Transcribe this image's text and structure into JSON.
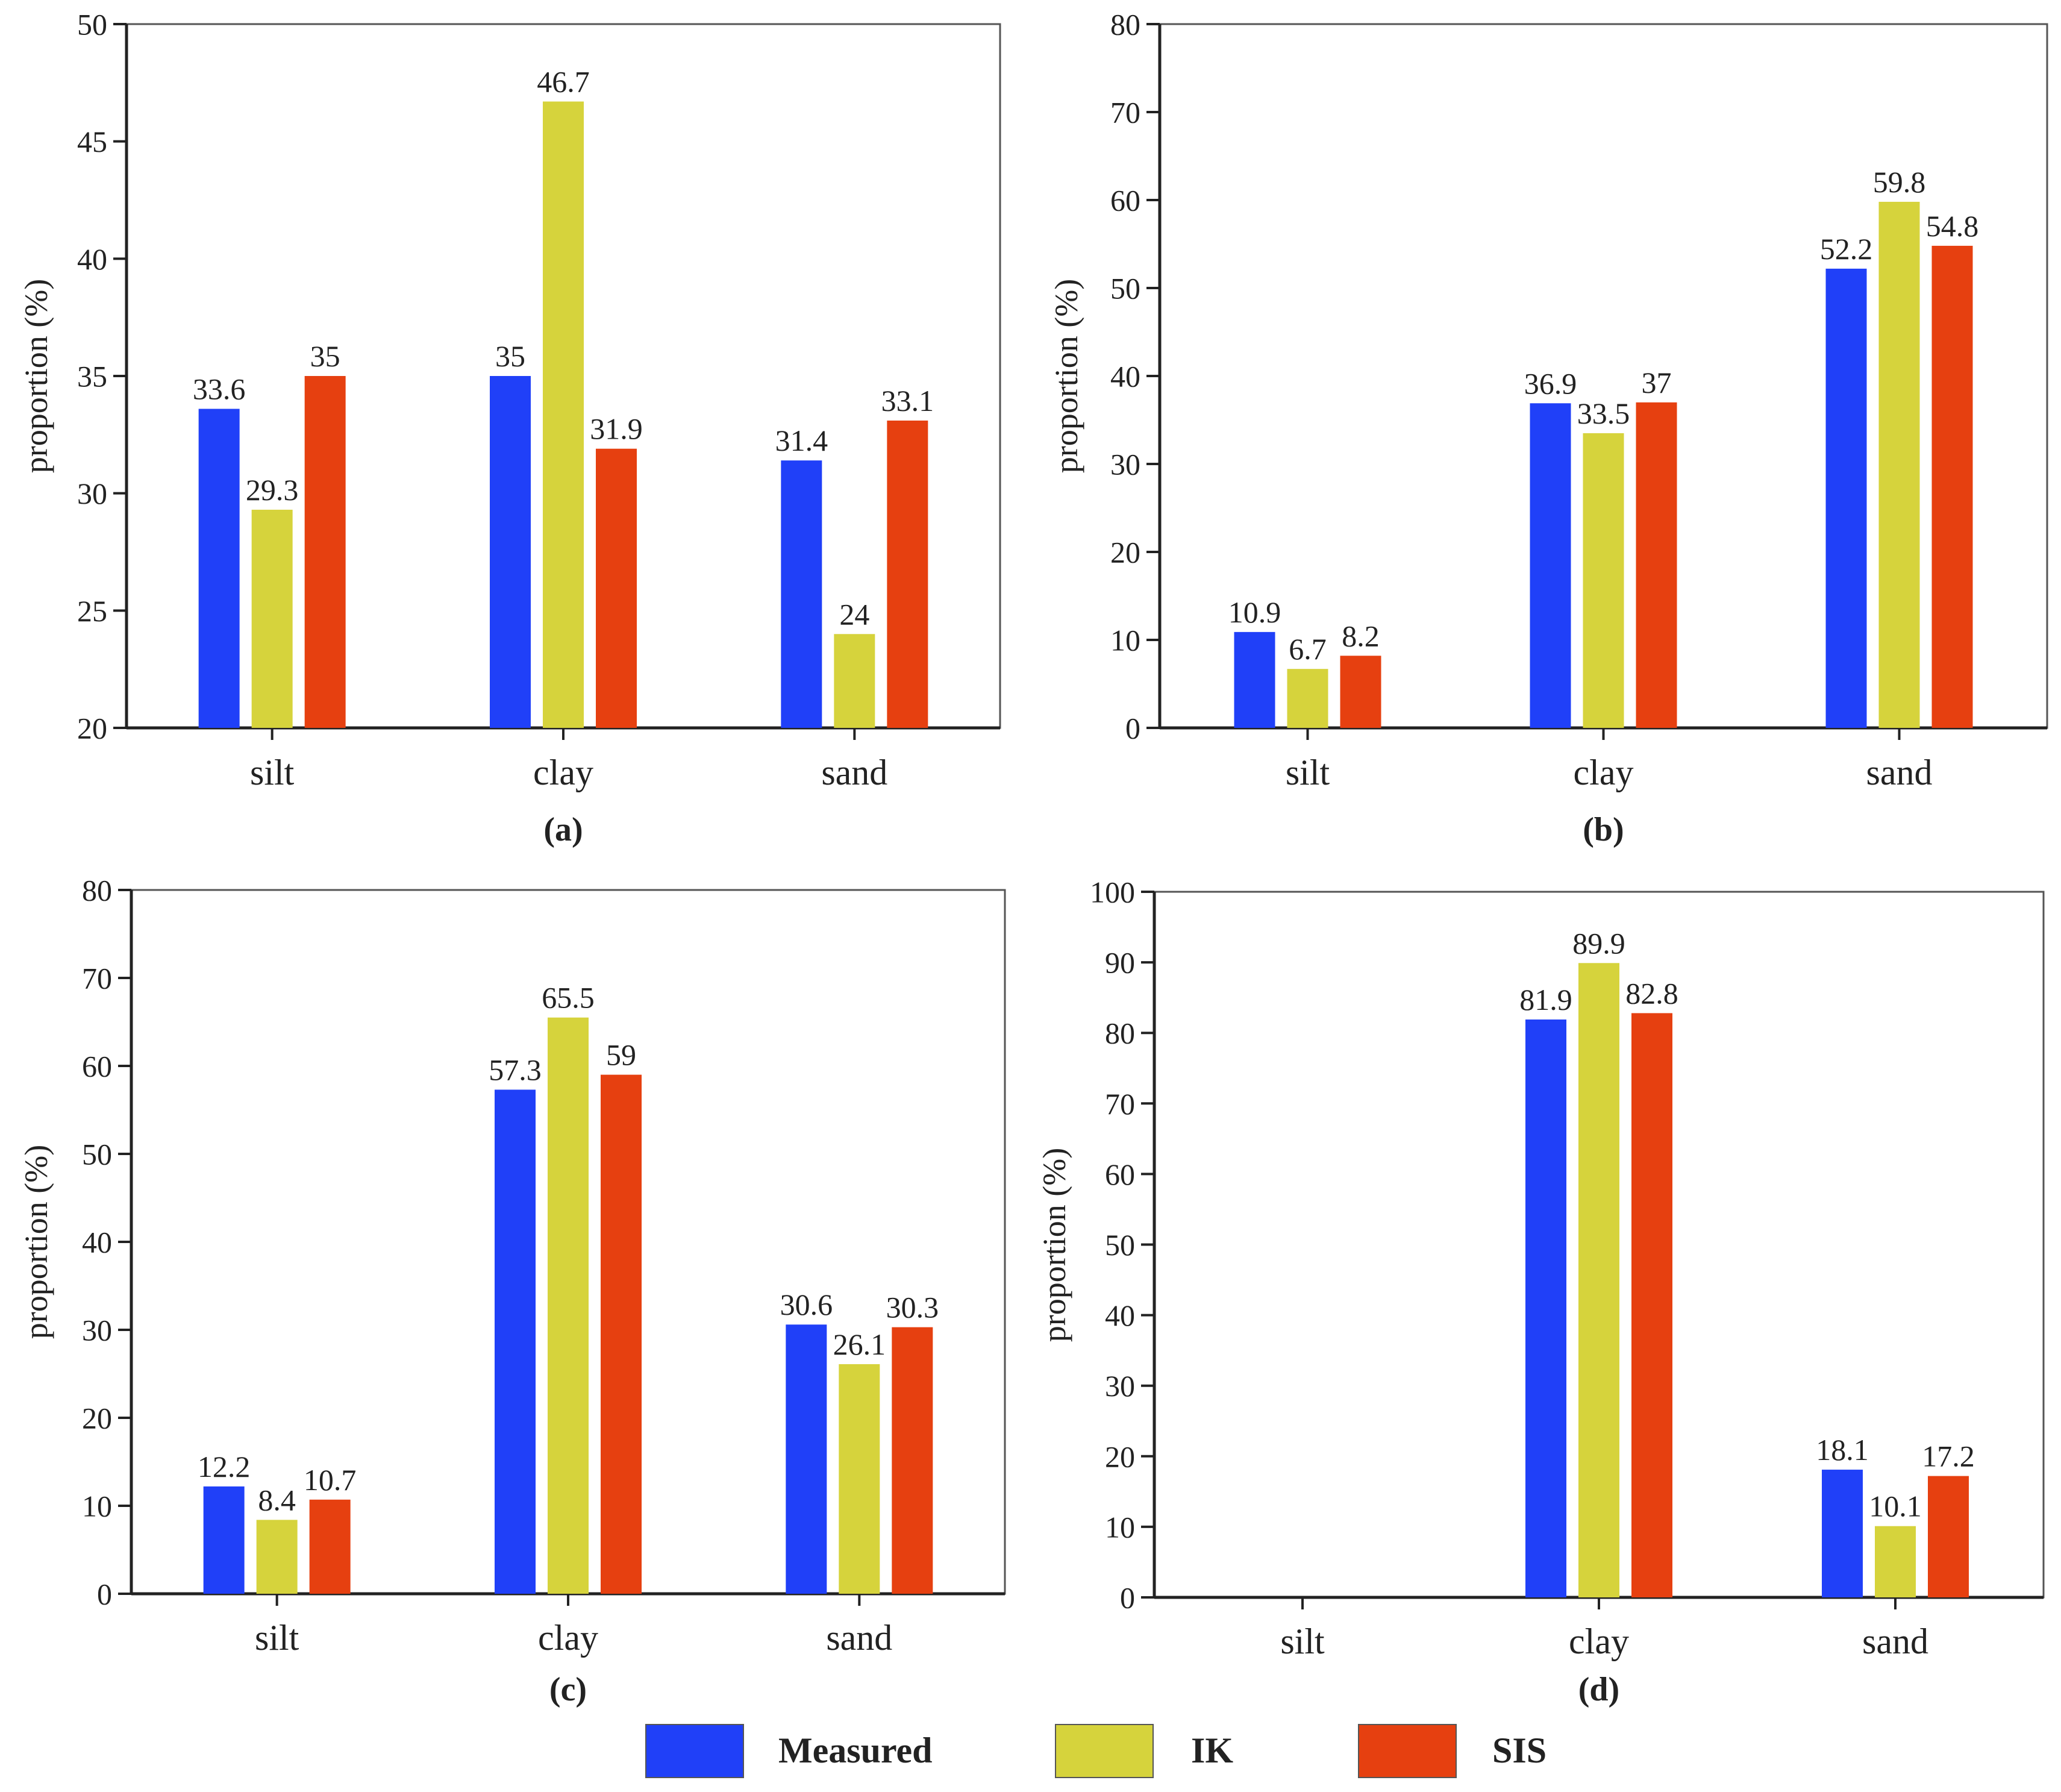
{
  "colors": {
    "Measured": "#2040f8",
    "IK": "#d6d33c",
    "SIS": "#e64010",
    "axis": "#222222"
  },
  "legend": {
    "items": [
      {
        "name": "Measured",
        "color": "#2040f8"
      },
      {
        "name": "IK",
        "color": "#d6d33c"
      },
      {
        "name": "SIS",
        "color": "#e64010"
      }
    ]
  },
  "chart_data": [
    {
      "type": "bar",
      "panel_label": "(a)",
      "categories": [
        "silt",
        "clay",
        "sand"
      ],
      "series": [
        {
          "name": "Measured",
          "values": [
            33.6,
            35,
            31.4
          ]
        },
        {
          "name": "IK",
          "values": [
            29.3,
            46.7,
            24
          ]
        },
        {
          "name": "SIS",
          "values": [
            35,
            31.9,
            33.1
          ]
        }
      ],
      "data_labels": [
        [
          "33.6",
          "29.3",
          "35"
        ],
        [
          "35",
          "46.7",
          "31.9"
        ],
        [
          "31.4",
          "24",
          "33.1"
        ]
      ],
      "ylabel": "proportion (%)",
      "ylim": [
        20,
        50
      ],
      "yticks": [
        20,
        25,
        30,
        35,
        40,
        45,
        50
      ]
    },
    {
      "type": "bar",
      "panel_label": "(b)",
      "categories": [
        "silt",
        "clay",
        "sand"
      ],
      "series": [
        {
          "name": "Measured",
          "values": [
            10.9,
            36.9,
            52.2
          ]
        },
        {
          "name": "IK",
          "values": [
            6.7,
            33.5,
            59.8
          ]
        },
        {
          "name": "SIS",
          "values": [
            8.2,
            37,
            54.8
          ]
        }
      ],
      "data_labels": [
        [
          "10.9",
          "6.7",
          "8.2"
        ],
        [
          "36.9",
          "33.5",
          "37"
        ],
        [
          "52.2",
          "59.8",
          "54.8"
        ]
      ],
      "ylabel": "proportion (%)",
      "ylim": [
        0,
        80
      ],
      "yticks": [
        0,
        10,
        20,
        30,
        40,
        50,
        60,
        70,
        80
      ]
    },
    {
      "type": "bar",
      "panel_label": "(c)",
      "categories": [
        "silt",
        "clay",
        "sand"
      ],
      "series": [
        {
          "name": "Measured",
          "values": [
            12.2,
            57.3,
            30.6
          ]
        },
        {
          "name": "IK",
          "values": [
            8.4,
            65.5,
            26.1
          ]
        },
        {
          "name": "SIS",
          "values": [
            10.7,
            59,
            30.3
          ]
        }
      ],
      "data_labels": [
        [
          "12.2",
          "8.4",
          "10.7"
        ],
        [
          "57.3",
          "65.5",
          "59"
        ],
        [
          "30.6",
          "26.1",
          "30.3"
        ]
      ],
      "ylabel": "proportion (%)",
      "ylim": [
        0,
        80
      ],
      "yticks": [
        0,
        10,
        20,
        30,
        40,
        50,
        60,
        70,
        80
      ]
    },
    {
      "type": "bar",
      "panel_label": "(d)",
      "categories": [
        "silt",
        "clay",
        "sand"
      ],
      "series": [
        {
          "name": "Measured",
          "values": [
            0,
            81.9,
            18.1
          ]
        },
        {
          "name": "IK",
          "values": [
            0,
            89.9,
            10.1
          ]
        },
        {
          "name": "SIS",
          "values": [
            0,
            82.8,
            17.2
          ]
        }
      ],
      "data_labels": [
        [
          "",
          "",
          ""
        ],
        [
          "81.9",
          "89.9",
          "82.8"
        ],
        [
          "18.1",
          "10.1",
          "17.2"
        ]
      ],
      "ylabel": "proportion (%)",
      "ylim": [
        0,
        100
      ],
      "yticks": [
        0,
        10,
        20,
        30,
        40,
        50,
        60,
        70,
        80,
        90,
        100
      ]
    }
  ]
}
